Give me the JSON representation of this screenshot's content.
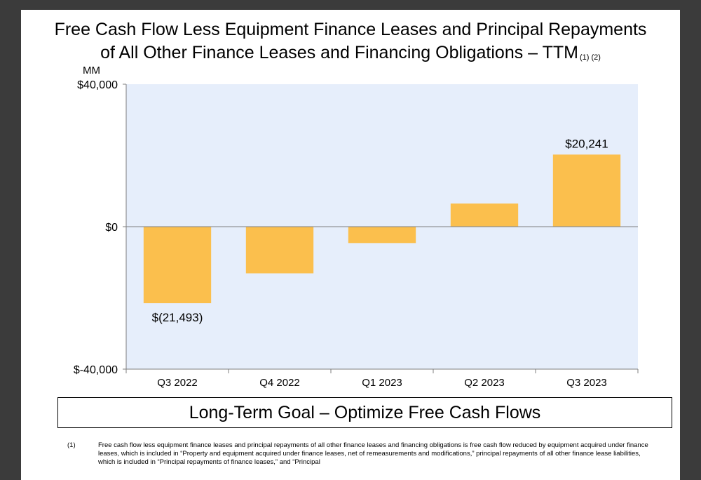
{
  "title_line1": "Free Cash Flow Less Equipment Finance Leases and Principal Repayments",
  "title_line2": "of All Other Finance Leases and Financing Obligations – TTM",
  "title_notes": "(1) (2)",
  "unit_label": "MM",
  "goal_text": "Long-Term Goal – Optimize Free Cash Flows",
  "footnote": {
    "number": "(1)",
    "text": "Free cash flow less equipment finance leases and principal repayments of all other finance leases and financing obligations is free cash flow reduced by equipment acquired under finance leases, which is included in “Property and equipment acquired under finance leases, net of remeasurements and modifications,” principal repayments of all other finance lease liabilities, which is included in “Principal repayments of finance leases,” and “Principal"
  },
  "colors": {
    "bar": "#fbbf4d",
    "plot_bg": "#e6eefb",
    "axis": "#7f7f7f"
  },
  "chart_data": {
    "type": "bar",
    "categories": [
      "Q3 2022",
      "Q4 2022",
      "Q1 2023",
      "Q2 2023",
      "Q3 2023"
    ],
    "values": [
      -21493,
      -13100,
      -4600,
      6500,
      20241
    ],
    "data_labels": [
      "$(21,493)",
      "",
      "",
      "",
      "$20,241"
    ],
    "ylim": [
      -40000,
      40000
    ],
    "y_ticks": [
      40000,
      0,
      -40000
    ],
    "y_tick_labels": [
      "$40,000",
      "$0",
      "$-40,000"
    ],
    "grid": false
  }
}
